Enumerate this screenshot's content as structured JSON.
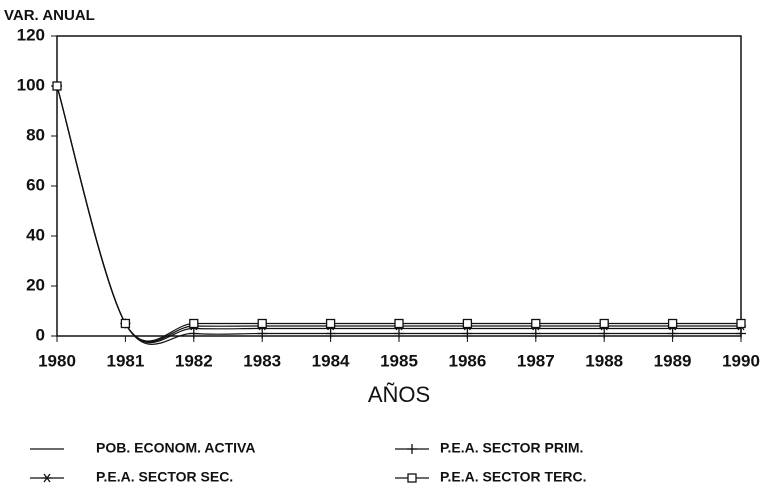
{
  "chart_data": {
    "type": "line",
    "y_label": "VAR. ANUAL",
    "x_label": "AÑOS",
    "x": [
      1980,
      1981,
      1982,
      1983,
      1984,
      1985,
      1986,
      1987,
      1988,
      1989,
      1990
    ],
    "xlim": [
      1980,
      1990
    ],
    "xticks": [
      1980,
      1981,
      1982,
      1983,
      1984,
      1985,
      1986,
      1987,
      1988,
      1989,
      1990
    ],
    "ylim": [
      0,
      120
    ],
    "yticks": [
      0,
      20,
      40,
      60,
      80,
      100,
      120
    ],
    "series": [
      {
        "name": "POB. ECONOM. ACTIVA",
        "color": "#111111",
        "marker": "none",
        "values": [
          100,
          5,
          3,
          3,
          3,
          3,
          3,
          3,
          3,
          3,
          3
        ]
      },
      {
        "name": "P.E.A. SECTOR PRIM.",
        "color": "#111111",
        "marker": "plus",
        "values": [
          100,
          5,
          1,
          1,
          1,
          1,
          1,
          1,
          1,
          1,
          1
        ]
      },
      {
        "name": "P.E.A. SECTOR SEC.",
        "color": "#111111",
        "marker": "star",
        "values": [
          100,
          5,
          4,
          4,
          4,
          4,
          4,
          4,
          4,
          4,
          4
        ]
      },
      {
        "name": "P.E.A. SECTOR TERC.",
        "color": "#111111",
        "marker": "square",
        "values": [
          100,
          5,
          5,
          5,
          5,
          5,
          5,
          5,
          5,
          5,
          5
        ]
      }
    ]
  }
}
